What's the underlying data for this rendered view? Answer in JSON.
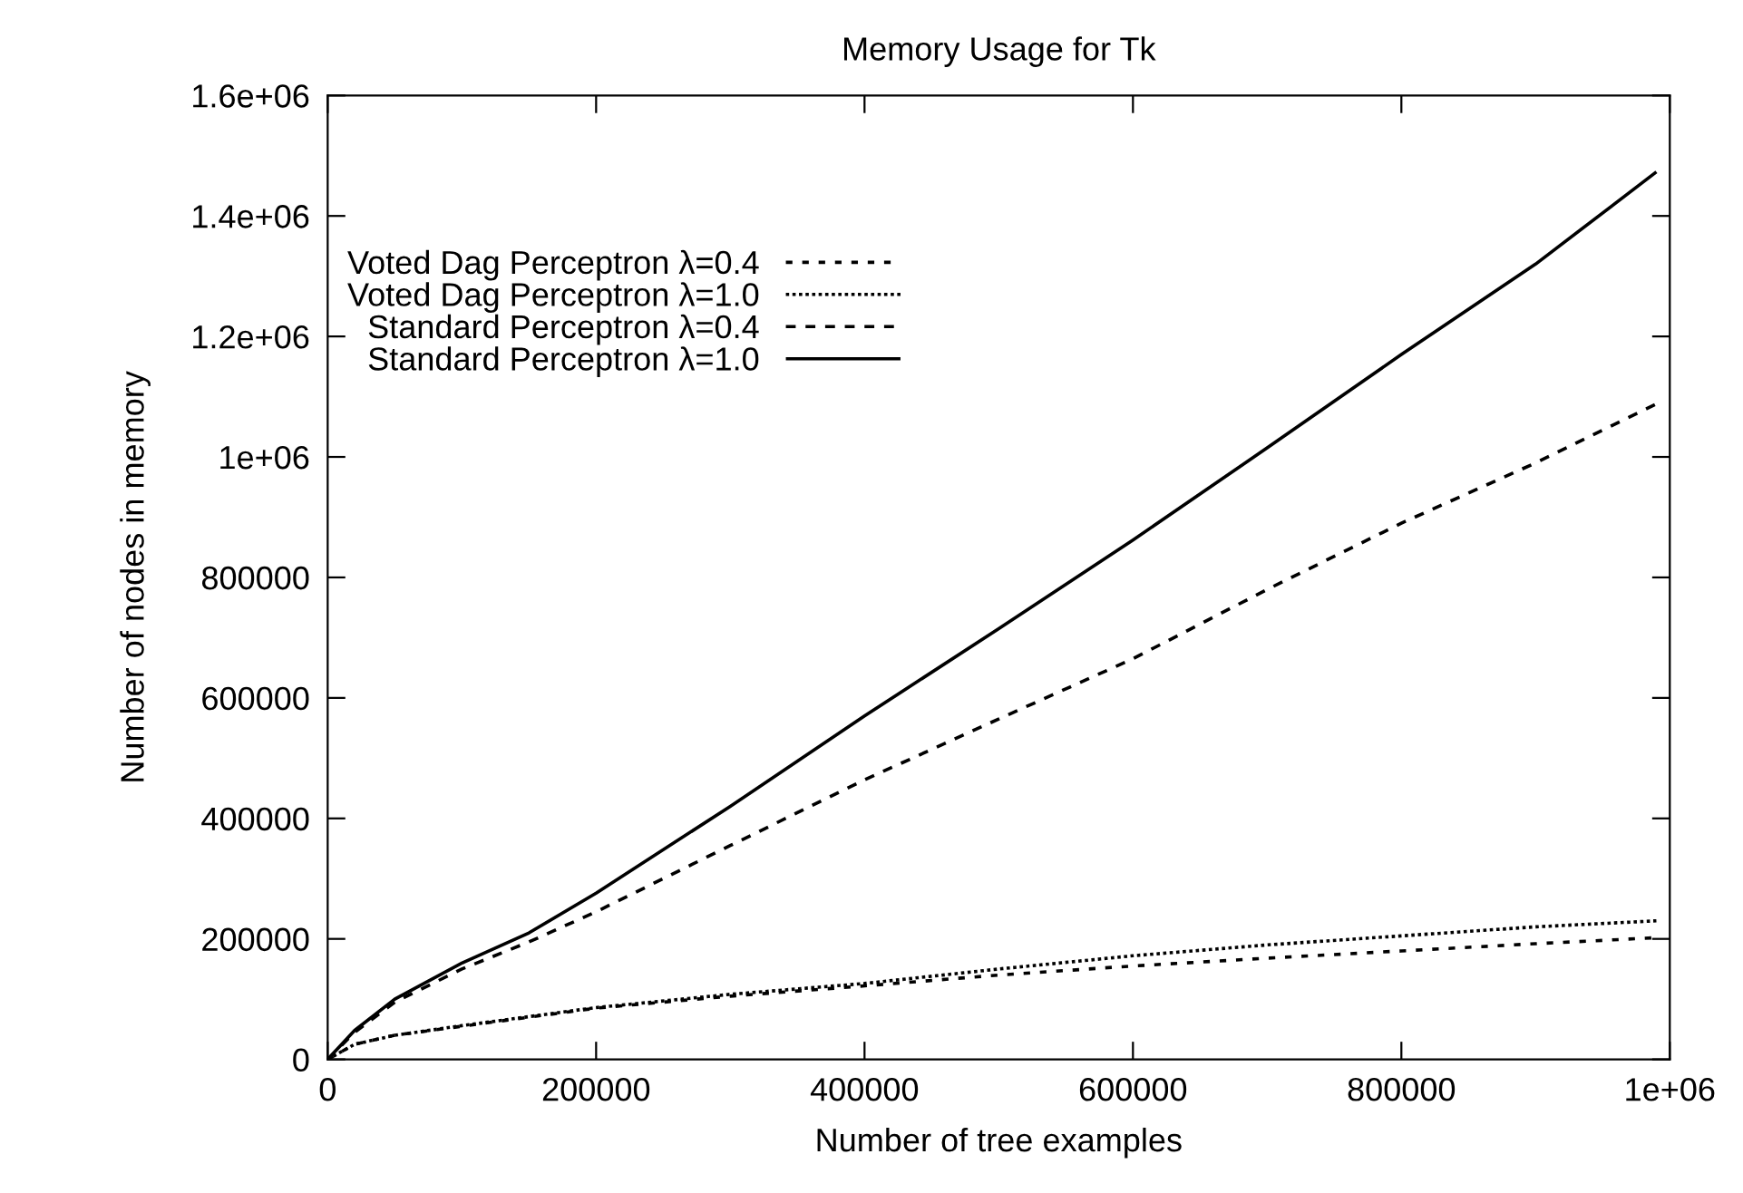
{
  "chart_data": {
    "type": "line",
    "title": "Memory Usage for Tk",
    "xlabel": "Number of tree examples",
    "ylabel": "Number of nodes in memory",
    "xlim": [
      0,
      1000000
    ],
    "ylim": [
      0,
      1600000
    ],
    "xticks": [
      0,
      200000,
      400000,
      600000,
      800000,
      {
        "value": 1000000,
        "label": "1e+06"
      }
    ],
    "yticks": [
      0,
      200000,
      400000,
      600000,
      800000,
      {
        "value": 1000000,
        "label": "1e+06"
      },
      {
        "value": 1200000,
        "label": "1.2e+06"
      },
      {
        "value": 1400000,
        "label": "1.4e+06"
      },
      {
        "value": 1600000,
        "label": "1.6e+06"
      }
    ],
    "x": [
      0,
      20000,
      50000,
      100000,
      150000,
      200000,
      300000,
      400000,
      500000,
      600000,
      700000,
      800000,
      900000,
      990000
    ],
    "grid": false,
    "legend": "top left",
    "marker": "none",
    "series": [
      {
        "name": "Voted Dag Perceptron λ=0.4",
        "color": "#000000",
        "line_style": "dashed",
        "values": [
          0,
          25000,
          40000,
          55000,
          70000,
          85000,
          105000,
          122000,
          140000,
          155000,
          168000,
          180000,
          192000,
          202000
        ]
      },
      {
        "name": "Voted Dag Perceptron λ=1.0",
        "color": "#000000",
        "line_style": "dotted",
        "values": [
          0,
          25000,
          40000,
          56000,
          71000,
          86000,
          108000,
          126000,
          150000,
          172000,
          190000,
          205000,
          220000,
          230000
        ]
      },
      {
        "name": "Standard Perceptron λ=0.4",
        "color": "#000000",
        "line_style": "dashed",
        "values": [
          0,
          45000,
          95000,
          150000,
          195000,
          245000,
          355000,
          464000,
          565000,
          665000,
          780000,
          890000,
          990000,
          1088000
        ]
      },
      {
        "name": "Standard Perceptron λ=1.0",
        "color": "#000000",
        "line_style": "solid",
        "values": [
          0,
          48000,
          100000,
          160000,
          210000,
          276000,
          420000,
          570000,
          715000,
          862000,
          1015000,
          1170000,
          1320000,
          1473000
        ]
      }
    ]
  }
}
